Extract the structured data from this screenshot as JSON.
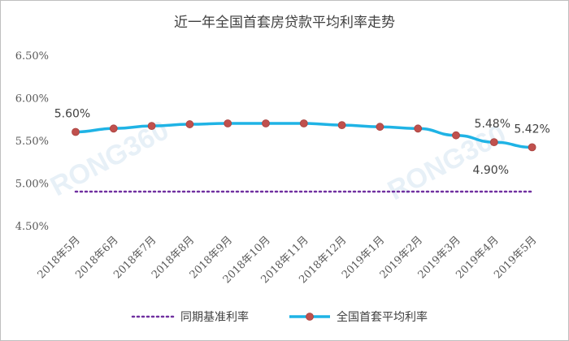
{
  "chart_data": {
    "type": "line",
    "title": "近一年全国首套房贷款平均利率走势",
    "categories": [
      "2018年5月",
      "2018年6月",
      "2018年7月",
      "2018年8月",
      "2018年9月",
      "2018年10月",
      "2018年11月",
      "2018年12月",
      "2019年1月",
      "2019年2月",
      "2019年3月",
      "2019年4月",
      "2019年5月"
    ],
    "y_ticks": [
      "6.50%",
      "6.00%",
      "5.50%",
      "5.00%",
      "4.50%"
    ],
    "ylim": [
      4.5,
      6.5
    ],
    "grid": false,
    "legend_position": "bottom",
    "watermark": [
      "RONG360",
      "RONG360"
    ],
    "series": [
      {
        "name": "同期基准利率",
        "style": "dotted",
        "color": "#7030a0",
        "values": [
          4.9,
          4.9,
          4.9,
          4.9,
          4.9,
          4.9,
          4.9,
          4.9,
          4.9,
          4.9,
          4.9,
          4.9,
          4.9
        ]
      },
      {
        "name": "全国首套平均利率",
        "style": "line-with-markers",
        "color": "#1fb3e5",
        "marker_color": "#c0504d",
        "values": [
          5.6,
          5.64,
          5.67,
          5.69,
          5.7,
          5.7,
          5.7,
          5.68,
          5.66,
          5.64,
          5.56,
          5.48,
          5.42
        ]
      }
    ],
    "data_labels": [
      {
        "text": "5.60%",
        "series": 1,
        "index": 0
      },
      {
        "text": "5.48%",
        "series": 1,
        "index": 11
      },
      {
        "text": "5.42%",
        "series": 1,
        "index": 12
      },
      {
        "text": "4.90%",
        "series": 0,
        "index": 11
      }
    ]
  }
}
